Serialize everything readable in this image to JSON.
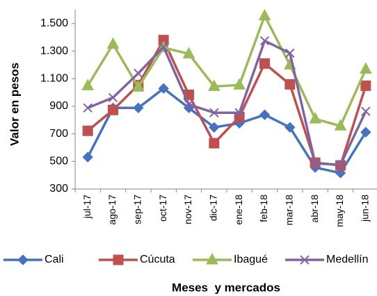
{
  "chart_data": {
    "type": "line",
    "x_label": "Meses  y mercados",
    "y_label": "Valor en pesos",
    "categories": [
      "jul-17",
      "ago-17",
      "sep-17",
      "oct-17",
      "nov-17",
      "dic-17",
      "ene-18",
      "feb-18",
      "mar-18",
      "abr-18",
      "may-18",
      "jun-18"
    ],
    "series": [
      {
        "name": "Cali",
        "color": "#4472c4",
        "marker": "diamond",
        "values": [
          531,
          888,
          888,
          1029,
          888,
          747,
          777,
          838,
          747,
          456,
          416,
          712
        ]
      },
      {
        "name": "Cúcuta",
        "color": "#c0504d",
        "marker": "square",
        "values": [
          722,
          873,
          1054,
          1380,
          983,
          632,
          823,
          1210,
          1059,
          491,
          471,
          1049
        ]
      },
      {
        "name": "Ibagué",
        "color": "#9bbb59",
        "marker": "triangle",
        "values": [
          1049,
          1350,
          1039,
          1325,
          1280,
          1044,
          1054,
          1556,
          1200,
          808,
          757,
          1169
        ]
      },
      {
        "name": "Medellín",
        "color": "#8064a2",
        "marker": "x",
        "values": [
          888,
          963,
          1139,
          1330,
          913,
          853,
          853,
          1375,
          1285,
          486,
          476,
          863
        ]
      }
    ],
    "ylim": [
      300,
      1600
    ],
    "yticks": [
      300,
      500,
      700,
      900,
      {
        "value": 1100,
        "label": "1.100"
      },
      {
        "value": 1300,
        "label": "1.300"
      },
      {
        "value": 1500,
        "label": "1.500"
      }
    ],
    "grid": false,
    "legend": "bottom"
  }
}
